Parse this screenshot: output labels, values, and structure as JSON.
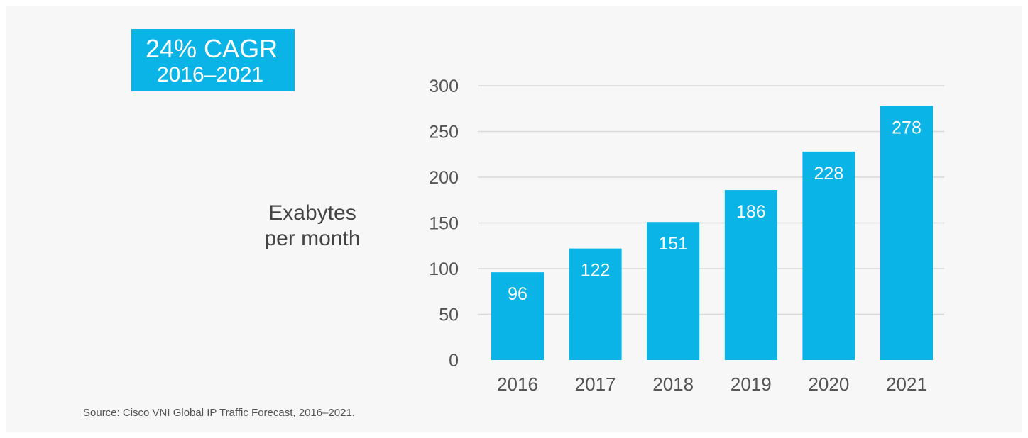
{
  "badge": {
    "title": "24% CAGR",
    "subtitle": "2016–2021"
  },
  "source": "Source:  Cisco VNI Global IP Traffic Forecast, 2016–2021.",
  "colors": {
    "bar": "#0ab4e6",
    "grid": "#d9d9d9",
    "tick_text": "#555555",
    "bar_label": "#ffffff",
    "background": "#f7f7f7"
  },
  "chart_data": {
    "type": "bar",
    "title": "",
    "xlabel": "",
    "ylabel": "Exabytes per month",
    "ylabel_lines": [
      "Exabytes",
      "per month"
    ],
    "categories": [
      "2016",
      "2017",
      "2018",
      "2019",
      "2020",
      "2021"
    ],
    "values": [
      96,
      122,
      151,
      186,
      228,
      278
    ],
    "value_labels": [
      "96",
      "122",
      "151",
      "186",
      "228",
      "278"
    ],
    "ylim": [
      0,
      300
    ],
    "yticks": [
      0,
      50,
      100,
      150,
      200,
      250,
      300
    ],
    "ytick_labels": [
      "0",
      "50",
      "100",
      "150",
      "200",
      "250",
      "300"
    ],
    "grid": true,
    "legend": "none"
  }
}
